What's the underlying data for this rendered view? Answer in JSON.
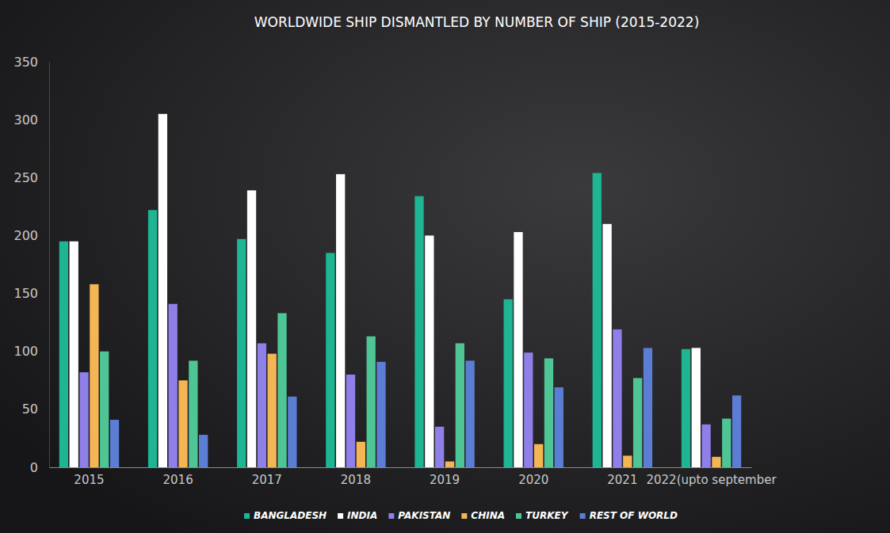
{
  "chart_data": {
    "type": "bar",
    "title": "WORLDWIDE SHIP DISMANTLED BY NUMBER OF SHIP (2015-2022)",
    "categories": [
      "2015",
      "2016",
      "2017",
      "2018",
      "2019",
      "2020",
      "2021",
      "2022(upto september"
    ],
    "series": [
      {
        "name": "BANGLADESH",
        "color": "#1db592",
        "values": [
          195,
          222,
          197,
          185,
          234,
          145,
          254,
          102
        ]
      },
      {
        "name": "INDIA",
        "color": "#ffffff",
        "values": [
          195,
          305,
          239,
          253,
          200,
          203,
          210,
          103
        ]
      },
      {
        "name": "PAKISTAN",
        "color": "#8f7fe8",
        "values": [
          82,
          141,
          107,
          80,
          35,
          99,
          119,
          37
        ]
      },
      {
        "name": "CHINA",
        "color": "#f4b555",
        "values": [
          158,
          75,
          98,
          22,
          5,
          20,
          10,
          9
        ]
      },
      {
        "name": "TURKEY",
        "color": "#4fc596",
        "values": [
          100,
          92,
          133,
          113,
          107,
          94,
          77,
          42
        ]
      },
      {
        "name": "REST OF WORLD",
        "color": "#5b7dd3",
        "values": [
          41,
          28,
          61,
          91,
          92,
          69,
          103,
          62
        ]
      }
    ],
    "ylim": [
      0,
      350
    ],
    "yticks": [
      0,
      50,
      100,
      150,
      200,
      250,
      300,
      350
    ],
    "grid": false,
    "legend": "bottom"
  }
}
